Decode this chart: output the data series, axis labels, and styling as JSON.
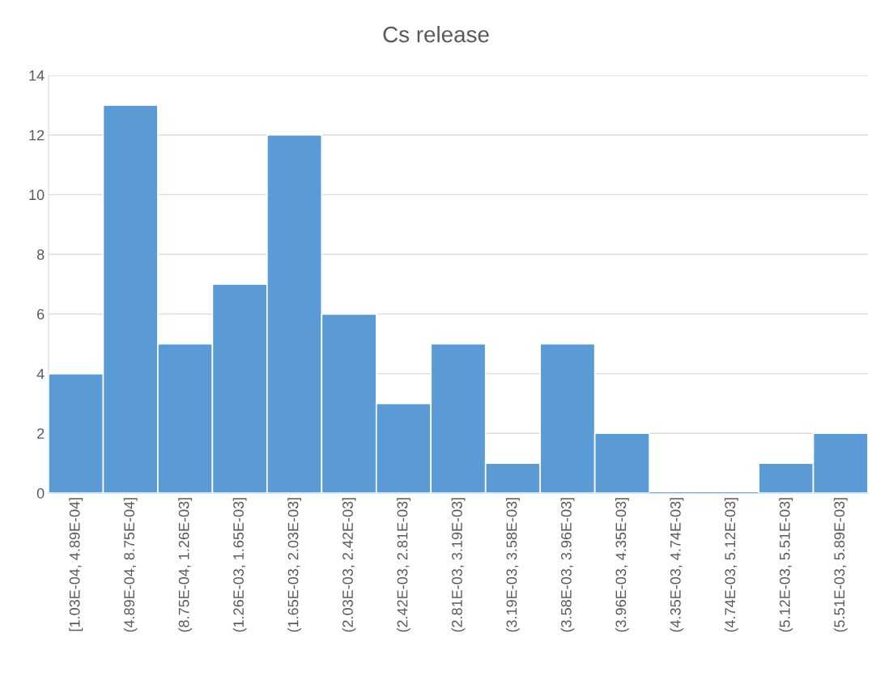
{
  "chart_data": {
    "type": "bar",
    "title": "Cs release",
    "categories": [
      "[1.03E-04, 4.89E-04]",
      "(4.89E-04, 8.75E-04]",
      "(8.75E-04, 1.26E-03]",
      "(1.26E-03, 1.65E-03]",
      "(1.65E-03, 2.03E-03]",
      "(2.03E-03, 2.42E-03]",
      "(2.42E-03, 2.81E-03]",
      "(2.81E-03, 3.19E-03]",
      "(3.19E-03, 3.58E-03]",
      "(3.58E-03, 3.96E-03]",
      "(3.96E-03, 4.35E-03]",
      "(4.35E-03, 4.74E-03]",
      "(4.74E-03, 5.12E-03]",
      "(5.12E-03, 5.51E-03]",
      "(5.51E-03, 5.89E-03]"
    ],
    "values": [
      4,
      13,
      5,
      7,
      12,
      6,
      3,
      5,
      1,
      5,
      2,
      0,
      0,
      1,
      2
    ],
    "color": "#5b9bd5",
    "ylim": [
      0,
      14
    ],
    "yticks": [
      0,
      2,
      4,
      6,
      8,
      10,
      12,
      14
    ],
    "grid": "y"
  }
}
